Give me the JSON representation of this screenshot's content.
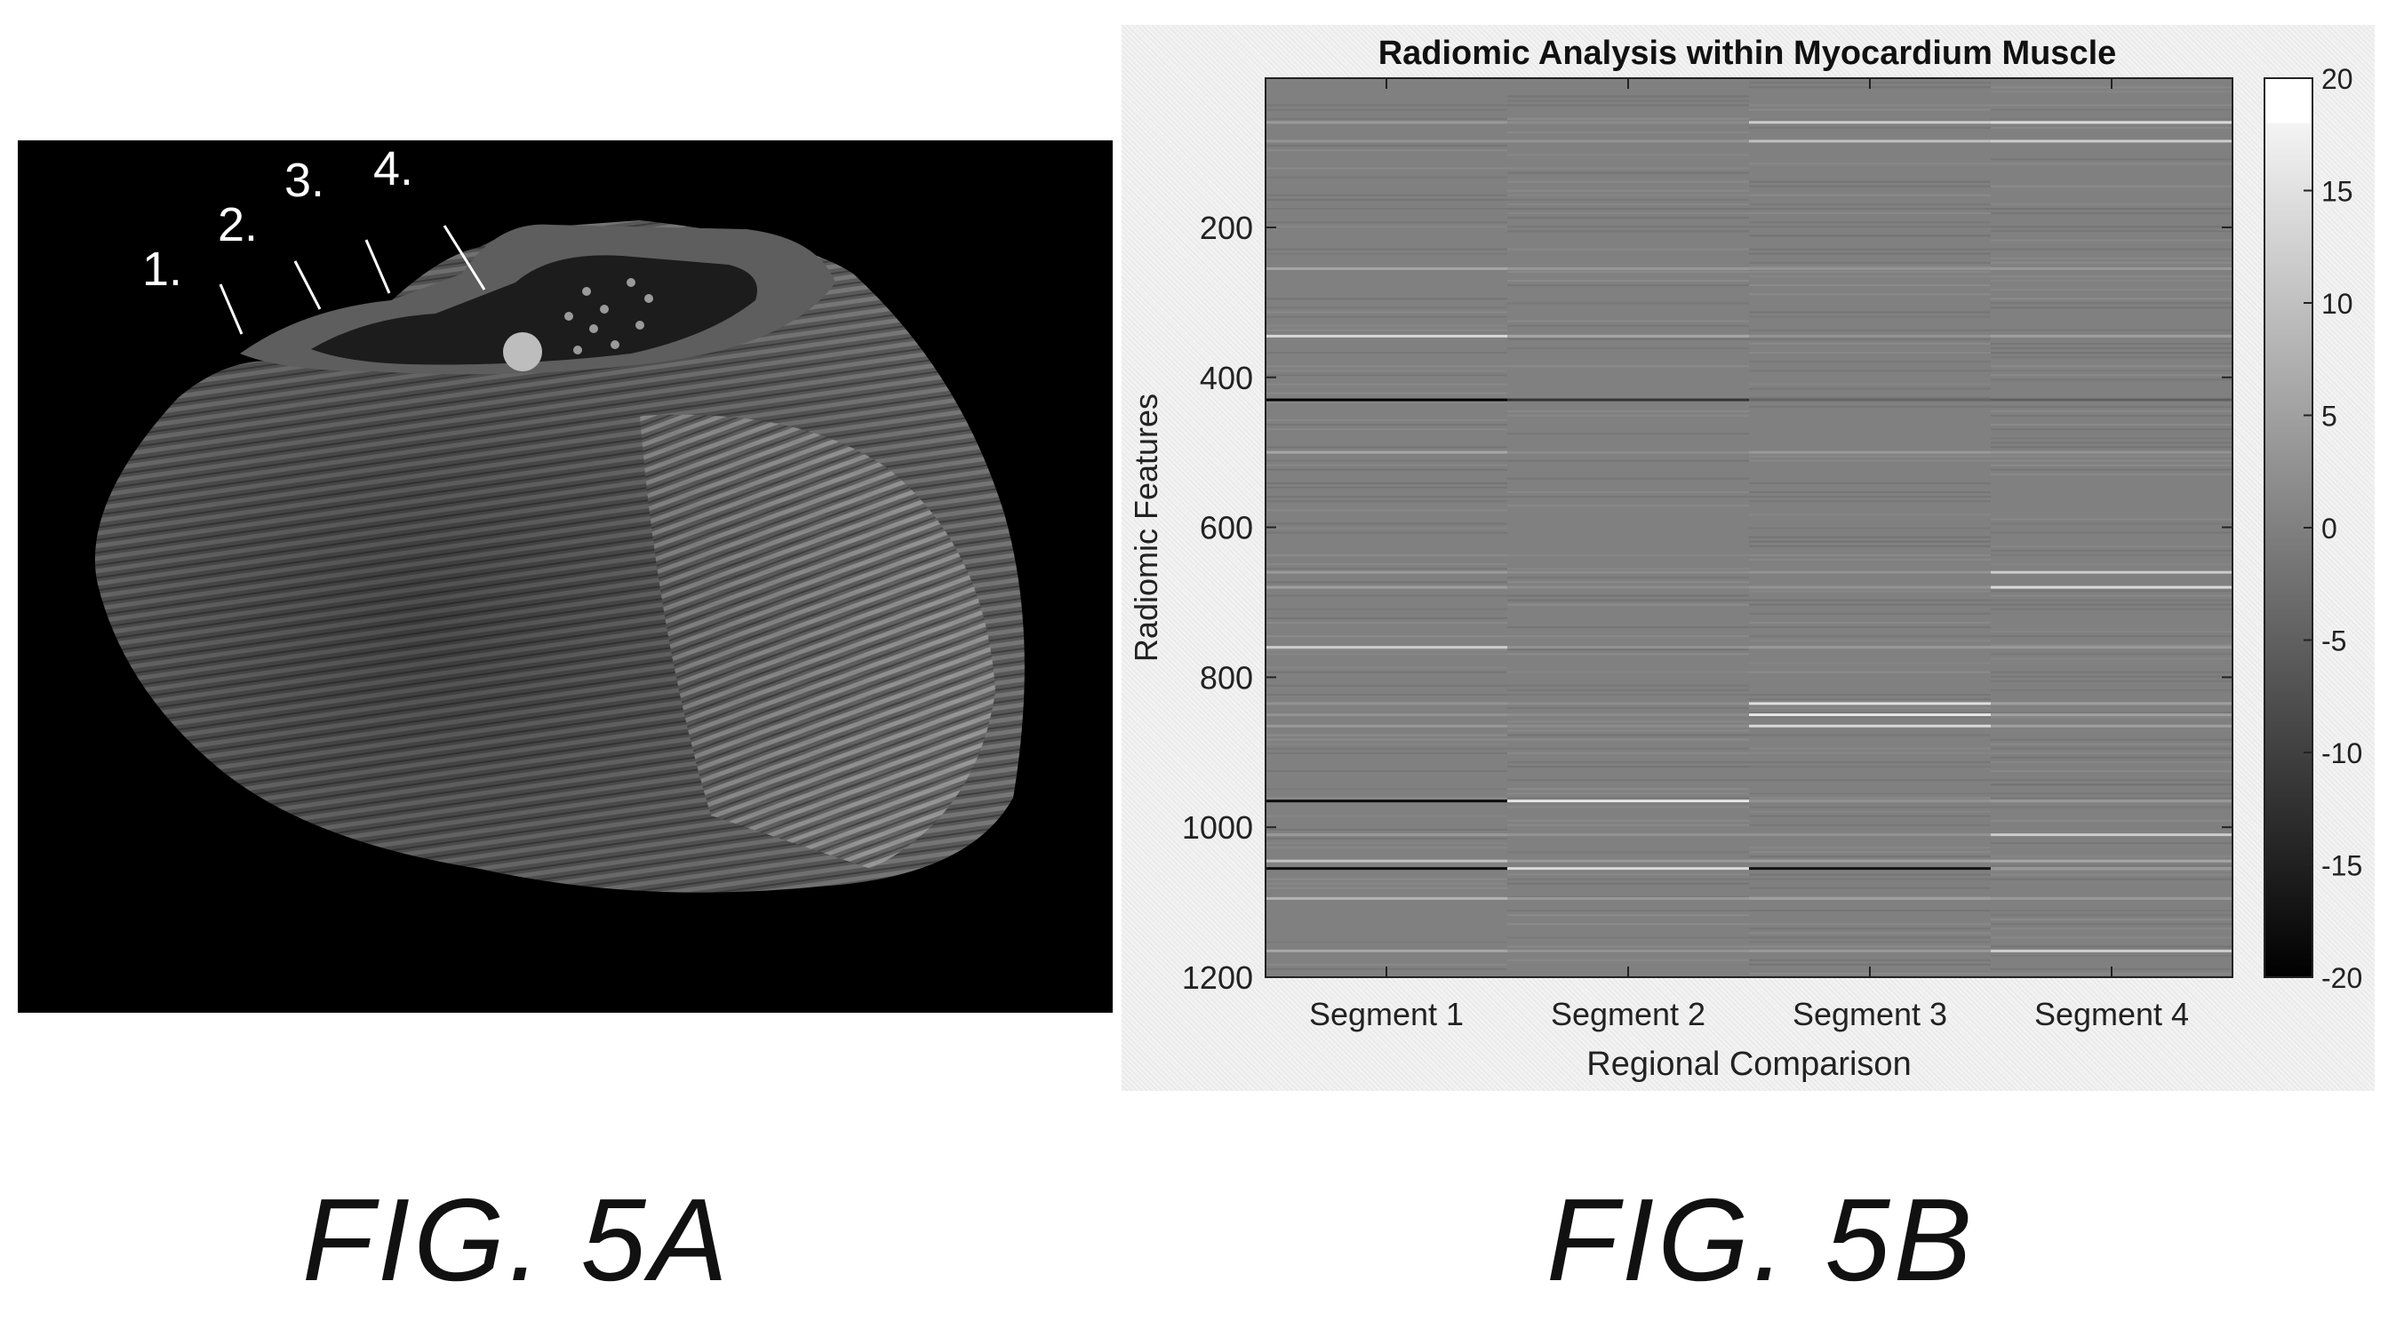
{
  "figure_a": {
    "caption": "FIG. 5A",
    "layer_labels": [
      "1.",
      "2.",
      "3.",
      "4."
    ]
  },
  "figure_b": {
    "caption": "FIG. 5B"
  },
  "colors": {
    "panel_a_background": "#000000",
    "heatmap_base": "#7e7e7e",
    "colorbar_max": "#ffffff",
    "colorbar_min": "#000000"
  },
  "chart_data": {
    "type": "heatmap",
    "title": "Radiomic Analysis within Myocardium Muscle",
    "xlabel": "Regional Comparison",
    "ylabel": "Radiomic Features",
    "categories": [
      "Segment 1",
      "Segment 2",
      "Segment 3",
      "Segment 4"
    ],
    "y_range": [
      1,
      1200
    ],
    "y_ticks": [
      "200",
      "400",
      "600",
      "800",
      "1000",
      "1200"
    ],
    "y_tick_values": [
      200,
      400,
      600,
      800,
      1000,
      1200
    ],
    "colorbar": {
      "min": -20,
      "max": 20,
      "ticks": [
        "20",
        "15",
        "10",
        "5",
        "0",
        "-5",
        "-10",
        "-15",
        "-20"
      ],
      "tick_values": [
        20,
        15,
        10,
        5,
        0,
        -5,
        -10,
        -15,
        -20
      ],
      "colormap": "gray"
    },
    "grid": false,
    "base_value": 0,
    "notable_features": [
      {
        "feature": 60,
        "values": [
          4,
          2,
          12,
          14
        ]
      },
      {
        "feature": 85,
        "values": [
          3,
          3,
          10,
          12
        ]
      },
      {
        "feature": 255,
        "values": [
          6,
          4,
          3,
          4
        ]
      },
      {
        "feature": 345,
        "values": [
          14,
          6,
          3,
          5
        ]
      },
      {
        "feature": 430,
        "values": [
          -20,
          -12,
          -4,
          -5
        ]
      },
      {
        "feature": 500,
        "values": [
          6,
          2,
          4,
          3
        ]
      },
      {
        "feature": 660,
        "values": [
          4,
          2,
          3,
          12
        ]
      },
      {
        "feature": 680,
        "values": [
          5,
          2,
          3,
          14
        ]
      },
      {
        "feature": 760,
        "values": [
          12,
          3,
          4,
          4
        ]
      },
      {
        "feature": 835,
        "values": [
          3,
          2,
          15,
          5
        ]
      },
      {
        "feature": 850,
        "values": [
          3,
          2,
          16,
          5
        ]
      },
      {
        "feature": 865,
        "values": [
          4,
          2,
          14,
          5
        ]
      },
      {
        "feature": 965,
        "values": [
          -18,
          16,
          3,
          4
        ]
      },
      {
        "feature": 1010,
        "values": [
          4,
          3,
          3,
          12
        ]
      },
      {
        "feature": 1045,
        "values": [
          10,
          4,
          5,
          6
        ]
      },
      {
        "feature": 1055,
        "values": [
          -18,
          14,
          -17,
          4
        ]
      },
      {
        "feature": 1095,
        "values": [
          8,
          4,
          5,
          4
        ]
      },
      {
        "feature": 1165,
        "values": [
          6,
          3,
          4,
          12
        ]
      }
    ]
  }
}
